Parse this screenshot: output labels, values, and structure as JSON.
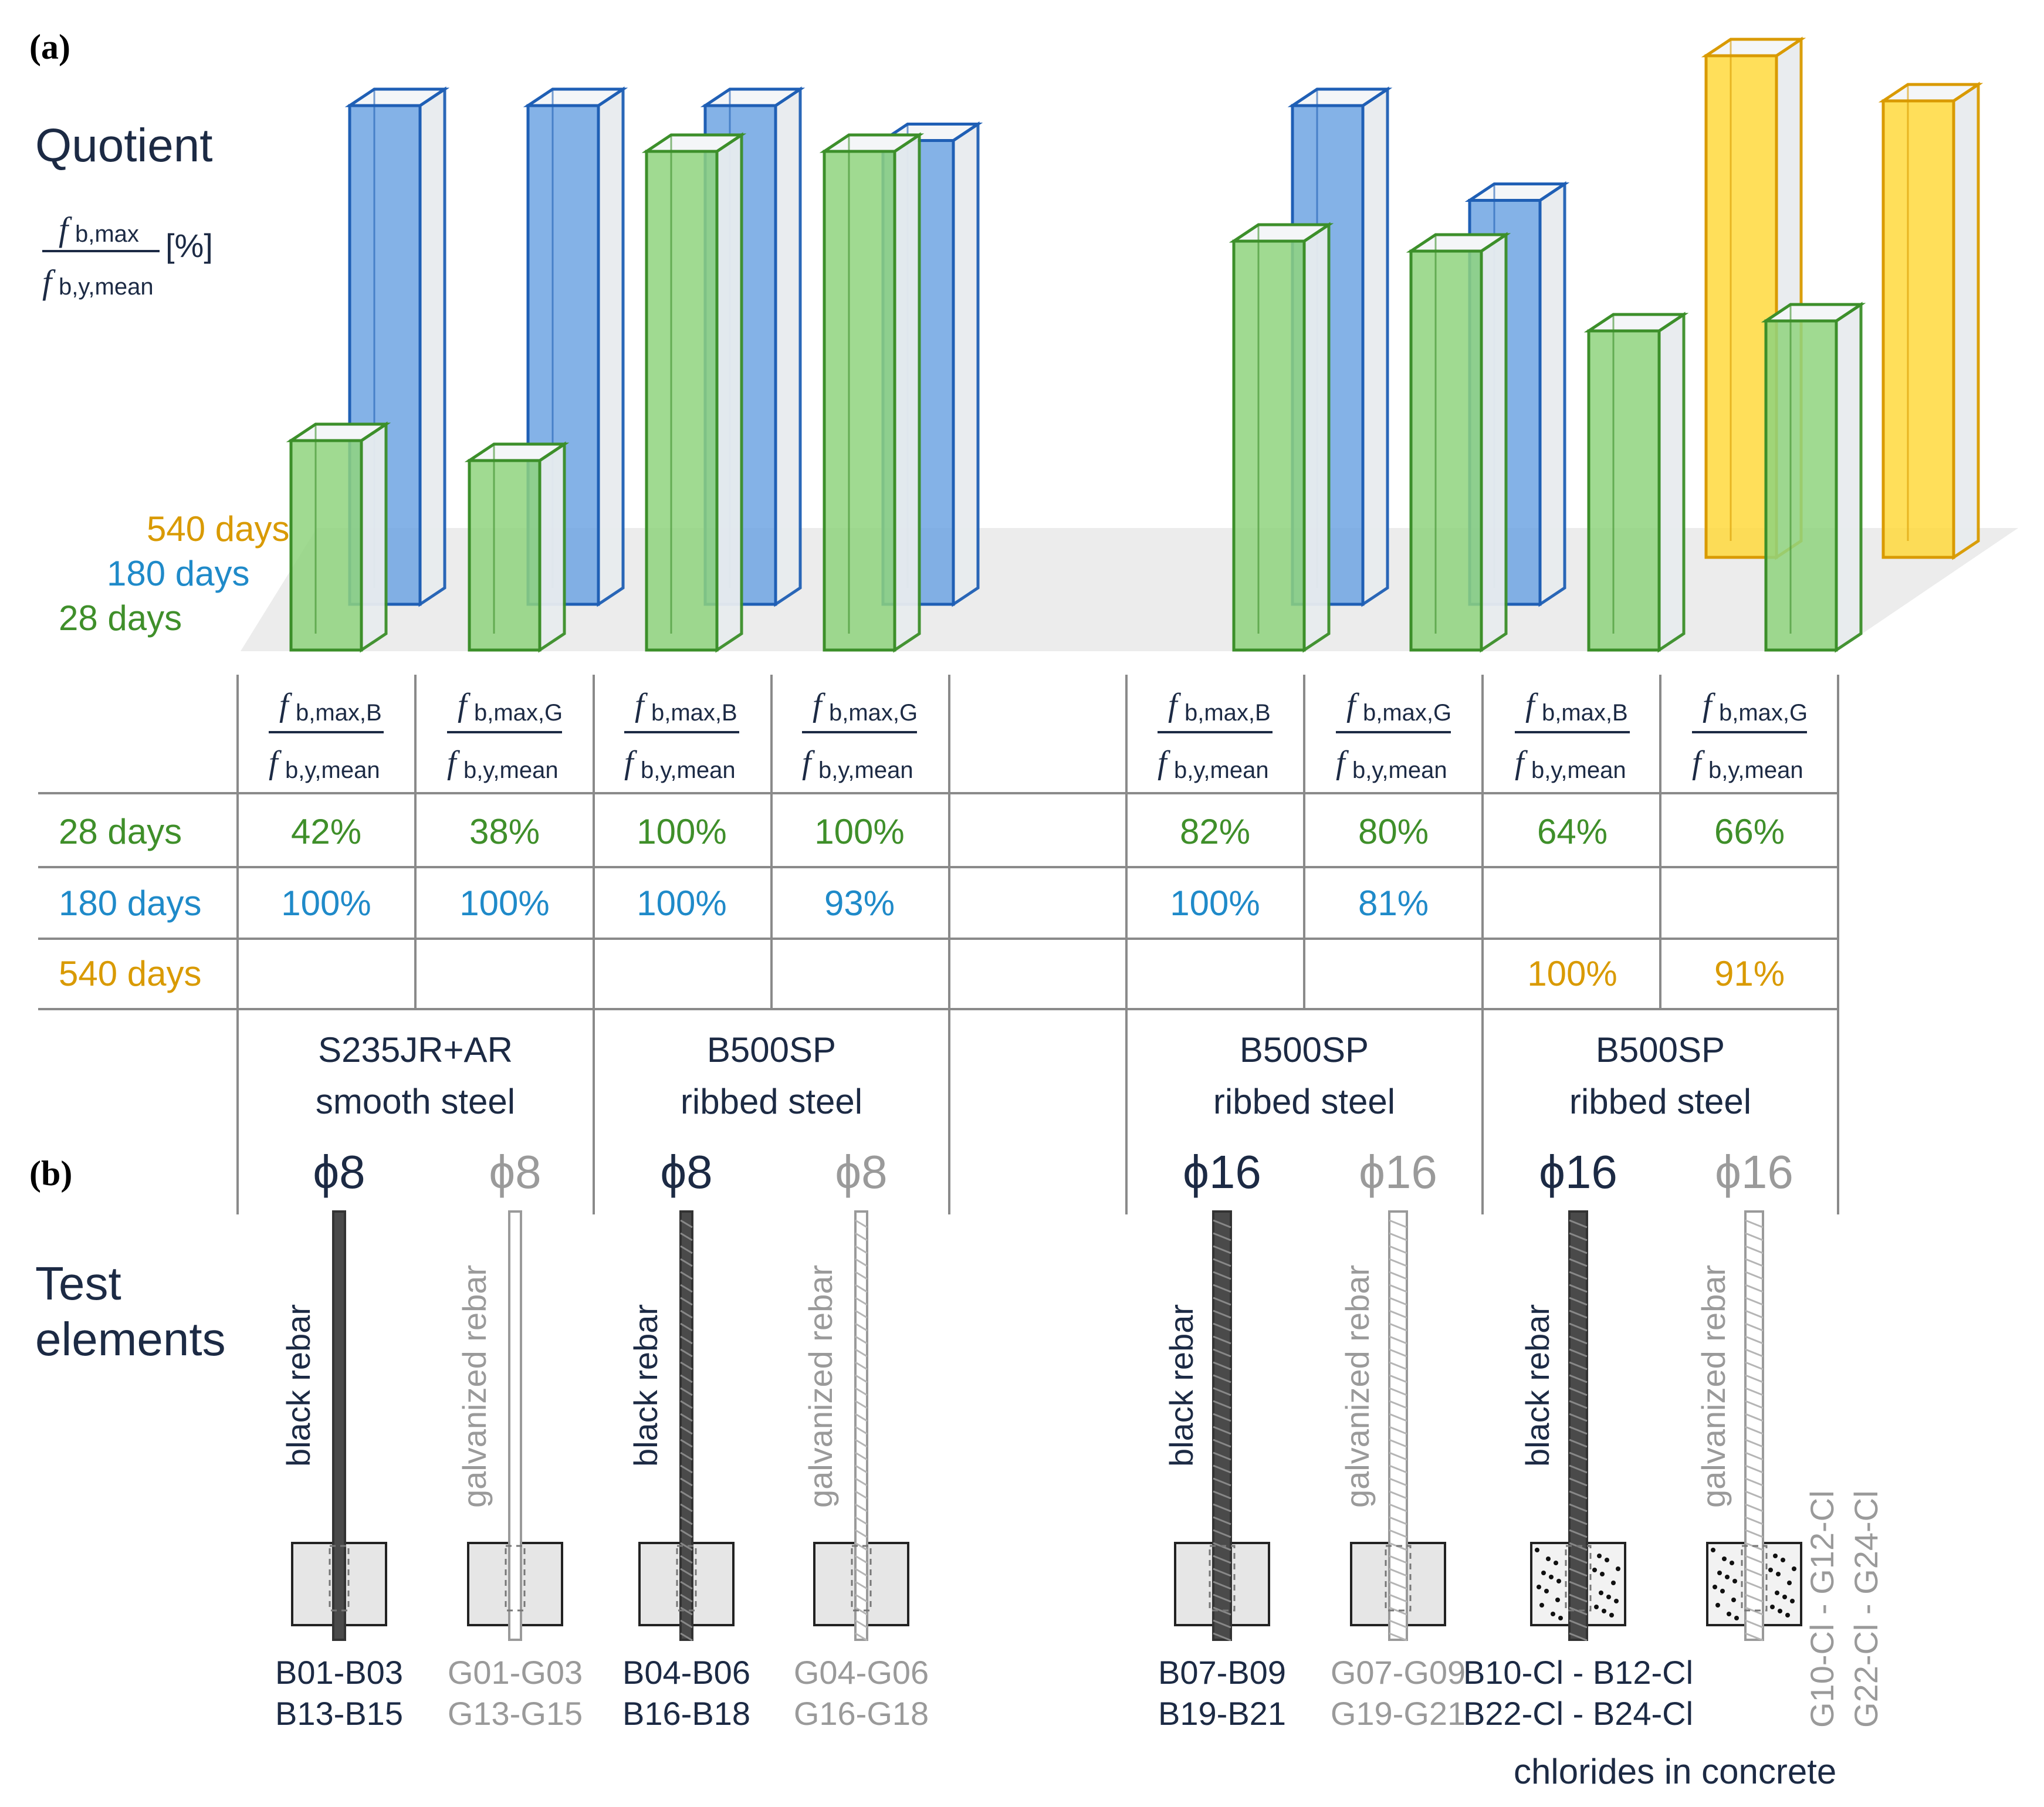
{
  "labels": {
    "part_a": "(a)",
    "part_b": "(b)",
    "quotient": "Quotient",
    "frac_num": "f",
    "frac_num_sub": "b,max",
    "frac_den": "f",
    "frac_den_sub": "b,y,mean",
    "unit": "[%]",
    "test_elements_1": "Test",
    "test_elements_2": "elements",
    "chlorides": "chlorides in concrete"
  },
  "colors": {
    "d28": "#3f8f2a",
    "d180": "#1f8ac9",
    "d540": "#d99a00",
    "green_fill": "#8fd47e",
    "blue_fill": "#6fa4e3",
    "yellow_fill": "#ffd93d",
    "green_edge": "#3c8f2a",
    "blue_edge": "#1f5fb5",
    "yellow_edge": "#d99a00",
    "text_dark": "#1c2a44",
    "text_gray": "#9a9a9a"
  },
  "chart_data": {
    "type": "bar",
    "categories": [
      "fb,max,B (S235JR+AR ϕ8)",
      "fb,max,G (S235JR+AR ϕ8)",
      "fb,max,B (B500SP ϕ8)",
      "fb,max,G (B500SP ϕ8)",
      "fb,max,B (B500SP ϕ16)",
      "fb,max,G (B500SP ϕ16)",
      "fb,max,B (B500SP ϕ16 Cl)",
      "fb,max,G (B500SP ϕ16 Cl)"
    ],
    "series": [
      {
        "name": "28 days",
        "values": [
          42,
          38,
          100,
          100,
          82,
          80,
          64,
          66
        ]
      },
      {
        "name": "180 days",
        "values": [
          100,
          100,
          100,
          93,
          100,
          81,
          null,
          null
        ]
      },
      {
        "name": "540 days",
        "values": [
          null,
          null,
          null,
          null,
          null,
          null,
          100,
          91
        ]
      }
    ],
    "ylabel": "Quotient fb,max / fb,y,mean [%]",
    "ylim": [
      0,
      100
    ]
  },
  "table": {
    "headers": [
      {
        "sub": "b,max,B"
      },
      {
        "sub": "b,max,G"
      },
      {
        "sub": "b,max,B"
      },
      {
        "sub": "b,max,G"
      },
      {
        "sub": "b,max,B"
      },
      {
        "sub": "b,max,G"
      },
      {
        "sub": "b,max,B"
      },
      {
        "sub": "b,max,G"
      }
    ],
    "rows": [
      {
        "label": "28 days",
        "cells": [
          "42%",
          "38%",
          "100%",
          "100%",
          "82%",
          "80%",
          "64%",
          "66%"
        ]
      },
      {
        "label": "180 days",
        "cells": [
          "100%",
          "100%",
          "100%",
          "93%",
          "100%",
          "81%",
          "",
          ""
        ]
      },
      {
        "label": "540 days",
        "cells": [
          "",
          "",
          "",
          "",
          "",
          "",
          "100%",
          "91%"
        ]
      }
    ]
  },
  "groups": [
    {
      "line1": "S235JR+AR",
      "line2": "smooth steel"
    },
    {
      "line1": "B500SP",
      "line2": "ribbed steel"
    },
    {
      "line1": "B500SP",
      "line2": "ribbed steel"
    },
    {
      "line1": "B500SP",
      "line2": "ribbed steel"
    }
  ],
  "elements": [
    {
      "dia": "ϕ8",
      "rebar": "black rebar",
      "ids1": "B01-B03",
      "ids2": "B13-B15",
      "tone": "dark",
      "kind": "smooth",
      "concrete": "plain"
    },
    {
      "dia": "ϕ8",
      "rebar": "galvanized rebar",
      "ids1": "G01-G03",
      "ids2": "G13-G15",
      "tone": "gray",
      "kind": "smooth",
      "concrete": "plain"
    },
    {
      "dia": "ϕ8",
      "rebar": "black rebar",
      "ids1": "B04-B06",
      "ids2": "B16-B18",
      "tone": "dark",
      "kind": "ribbed",
      "concrete": "plain"
    },
    {
      "dia": "ϕ8",
      "rebar": "galvanized rebar",
      "ids1": "G04-G06",
      "ids2": "G16-G18",
      "tone": "gray",
      "kind": "ribbed",
      "concrete": "plain"
    },
    {
      "dia": "ϕ16",
      "rebar": "black rebar",
      "ids1": "B07-B09",
      "ids2": "B19-B21",
      "tone": "dark",
      "kind": "ribbed",
      "concrete": "plain"
    },
    {
      "dia": "ϕ16",
      "rebar": "galvanized rebar",
      "ids1": "G07-G09",
      "ids2": "G19-G21",
      "tone": "gray",
      "kind": "ribbed",
      "concrete": "plain"
    },
    {
      "dia": "ϕ16",
      "rebar": "black rebar",
      "ids1": "B10-Cl - B12-Cl",
      "ids2": "B22-Cl - B24-Cl",
      "tone": "dark",
      "kind": "ribbed",
      "concrete": "dotted"
    },
    {
      "dia": "ϕ16",
      "rebar": "galvanized rebar",
      "ids1": "G10-Cl - G12-Cl",
      "ids2": "G22-Cl - G24-Cl",
      "tone": "gray",
      "kind": "ribbed",
      "concrete": "dotted"
    }
  ]
}
